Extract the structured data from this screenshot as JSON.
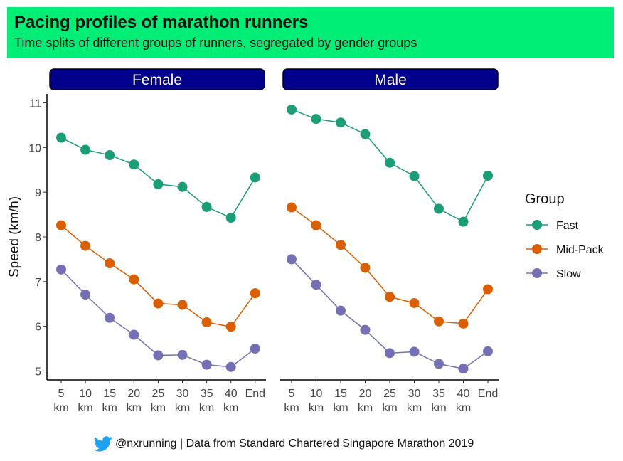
{
  "header": {
    "title": "Pacing profiles of marathon runners",
    "subtitle": "Time splits of different groups of runners, segregated by gender groups"
  },
  "footer": {
    "text": "@nxrunning | Data from Standard Chartered Singapore Marathon 2019",
    "icon": "twitter-bird-icon"
  },
  "colors": {
    "title_bg": "#00ee76",
    "panel_strip": "#00008b",
    "Fast": "#1b9e77",
    "Mid-Pack": "#d95f02",
    "Slow": "#7570b3"
  },
  "chart_data": {
    "type": "line",
    "title": "Pacing profiles of marathon runners",
    "subtitle": "Time splits of different groups of runners, segregated by gender groups",
    "xlabel": "",
    "ylabel": "Speed (km/h)",
    "ylim": [
      4.8,
      11.2
    ],
    "yticks": [
      5,
      6,
      7,
      8,
      9,
      10,
      11
    ],
    "categories": [
      [
        "5",
        "km"
      ],
      [
        "10",
        "km"
      ],
      [
        "15",
        "km"
      ],
      [
        "20",
        "km"
      ],
      [
        "25",
        "km"
      ],
      [
        "30",
        "km"
      ],
      [
        "35",
        "km"
      ],
      [
        "40",
        "km"
      ],
      [
        "End"
      ]
    ],
    "legend": {
      "title": "Group",
      "position": "right",
      "entries": [
        "Fast",
        "Mid-Pack",
        "Slow"
      ]
    },
    "panels": [
      {
        "label": "Female",
        "series": [
          {
            "name": "Fast",
            "values": [
              10.22,
              9.95,
              9.83,
              9.62,
              9.18,
              9.12,
              8.67,
              8.43,
              9.33
            ]
          },
          {
            "name": "Mid-Pack",
            "values": [
              8.26,
              7.8,
              7.41,
              7.05,
              6.51,
              6.48,
              6.09,
              5.99,
              6.74
            ]
          },
          {
            "name": "Slow",
            "values": [
              7.27,
              6.71,
              6.19,
              5.81,
              5.35,
              5.36,
              5.14,
              5.09,
              5.5
            ]
          }
        ]
      },
      {
        "label": "Male",
        "series": [
          {
            "name": "Fast",
            "values": [
              10.85,
              10.64,
              10.56,
              10.3,
              9.66,
              9.36,
              8.63,
              8.34,
              9.37
            ]
          },
          {
            "name": "Mid-Pack",
            "values": [
              8.66,
              8.26,
              7.82,
              7.31,
              6.66,
              6.52,
              6.11,
              6.06,
              6.83
            ]
          },
          {
            "name": "Slow",
            "values": [
              7.5,
              6.93,
              6.35,
              5.92,
              5.4,
              5.43,
              5.16,
              5.05,
              5.44
            ]
          }
        ]
      }
    ]
  }
}
